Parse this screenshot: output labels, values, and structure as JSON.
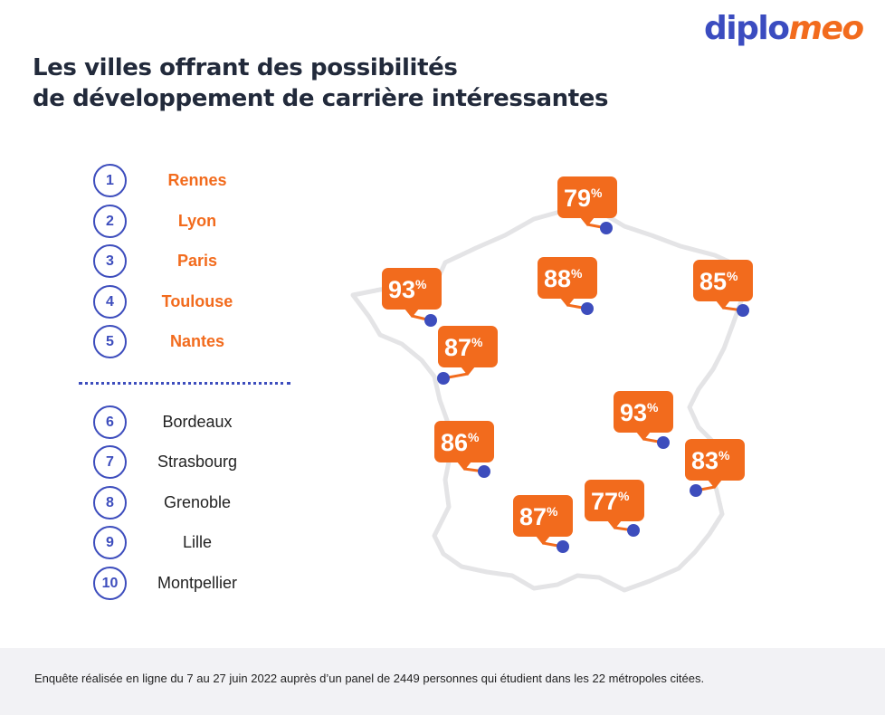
{
  "brand": {
    "logo_part1": "diplo",
    "logo_part2": "meo"
  },
  "title": {
    "line1": "Les villes offrant des possibilités",
    "line2": "de développement de carrière intéressantes"
  },
  "ranking": {
    "top": [
      {
        "rank": "1",
        "city": "Rennes"
      },
      {
        "rank": "2",
        "city": "Lyon"
      },
      {
        "rank": "3",
        "city": "Paris"
      },
      {
        "rank": "4",
        "city": "Toulouse"
      },
      {
        "rank": "5",
        "city": "Nantes"
      }
    ],
    "rest": [
      {
        "rank": "6",
        "city": "Bordeaux"
      },
      {
        "rank": "7",
        "city": "Strasbourg"
      },
      {
        "rank": "8",
        "city": "Grenoble"
      },
      {
        "rank": "9",
        "city": "Lille"
      },
      {
        "rank": "10",
        "city": "Montpellier"
      }
    ]
  },
  "map_markers": [
    {
      "value": "79",
      "unit": "%"
    },
    {
      "value": "88",
      "unit": "%"
    },
    {
      "value": "85",
      "unit": "%"
    },
    {
      "value": "93",
      "unit": "%"
    },
    {
      "value": "87",
      "unit": "%"
    },
    {
      "value": "93",
      "unit": "%"
    },
    {
      "value": "86",
      "unit": "%"
    },
    {
      "value": "83",
      "unit": "%"
    },
    {
      "value": "77",
      "unit": "%"
    },
    {
      "value": "87",
      "unit": "%"
    }
  ],
  "colors": {
    "accent_orange": "#f26b1d",
    "accent_blue": "#3d4dbd",
    "map_outline": "#e6e6e8"
  },
  "footer": {
    "note": "Enquête réalisée en ligne du 7 au 27 juin 2022 auprès d’un panel de 2449 personnes qui étudient dans les 22 métropoles citées."
  }
}
